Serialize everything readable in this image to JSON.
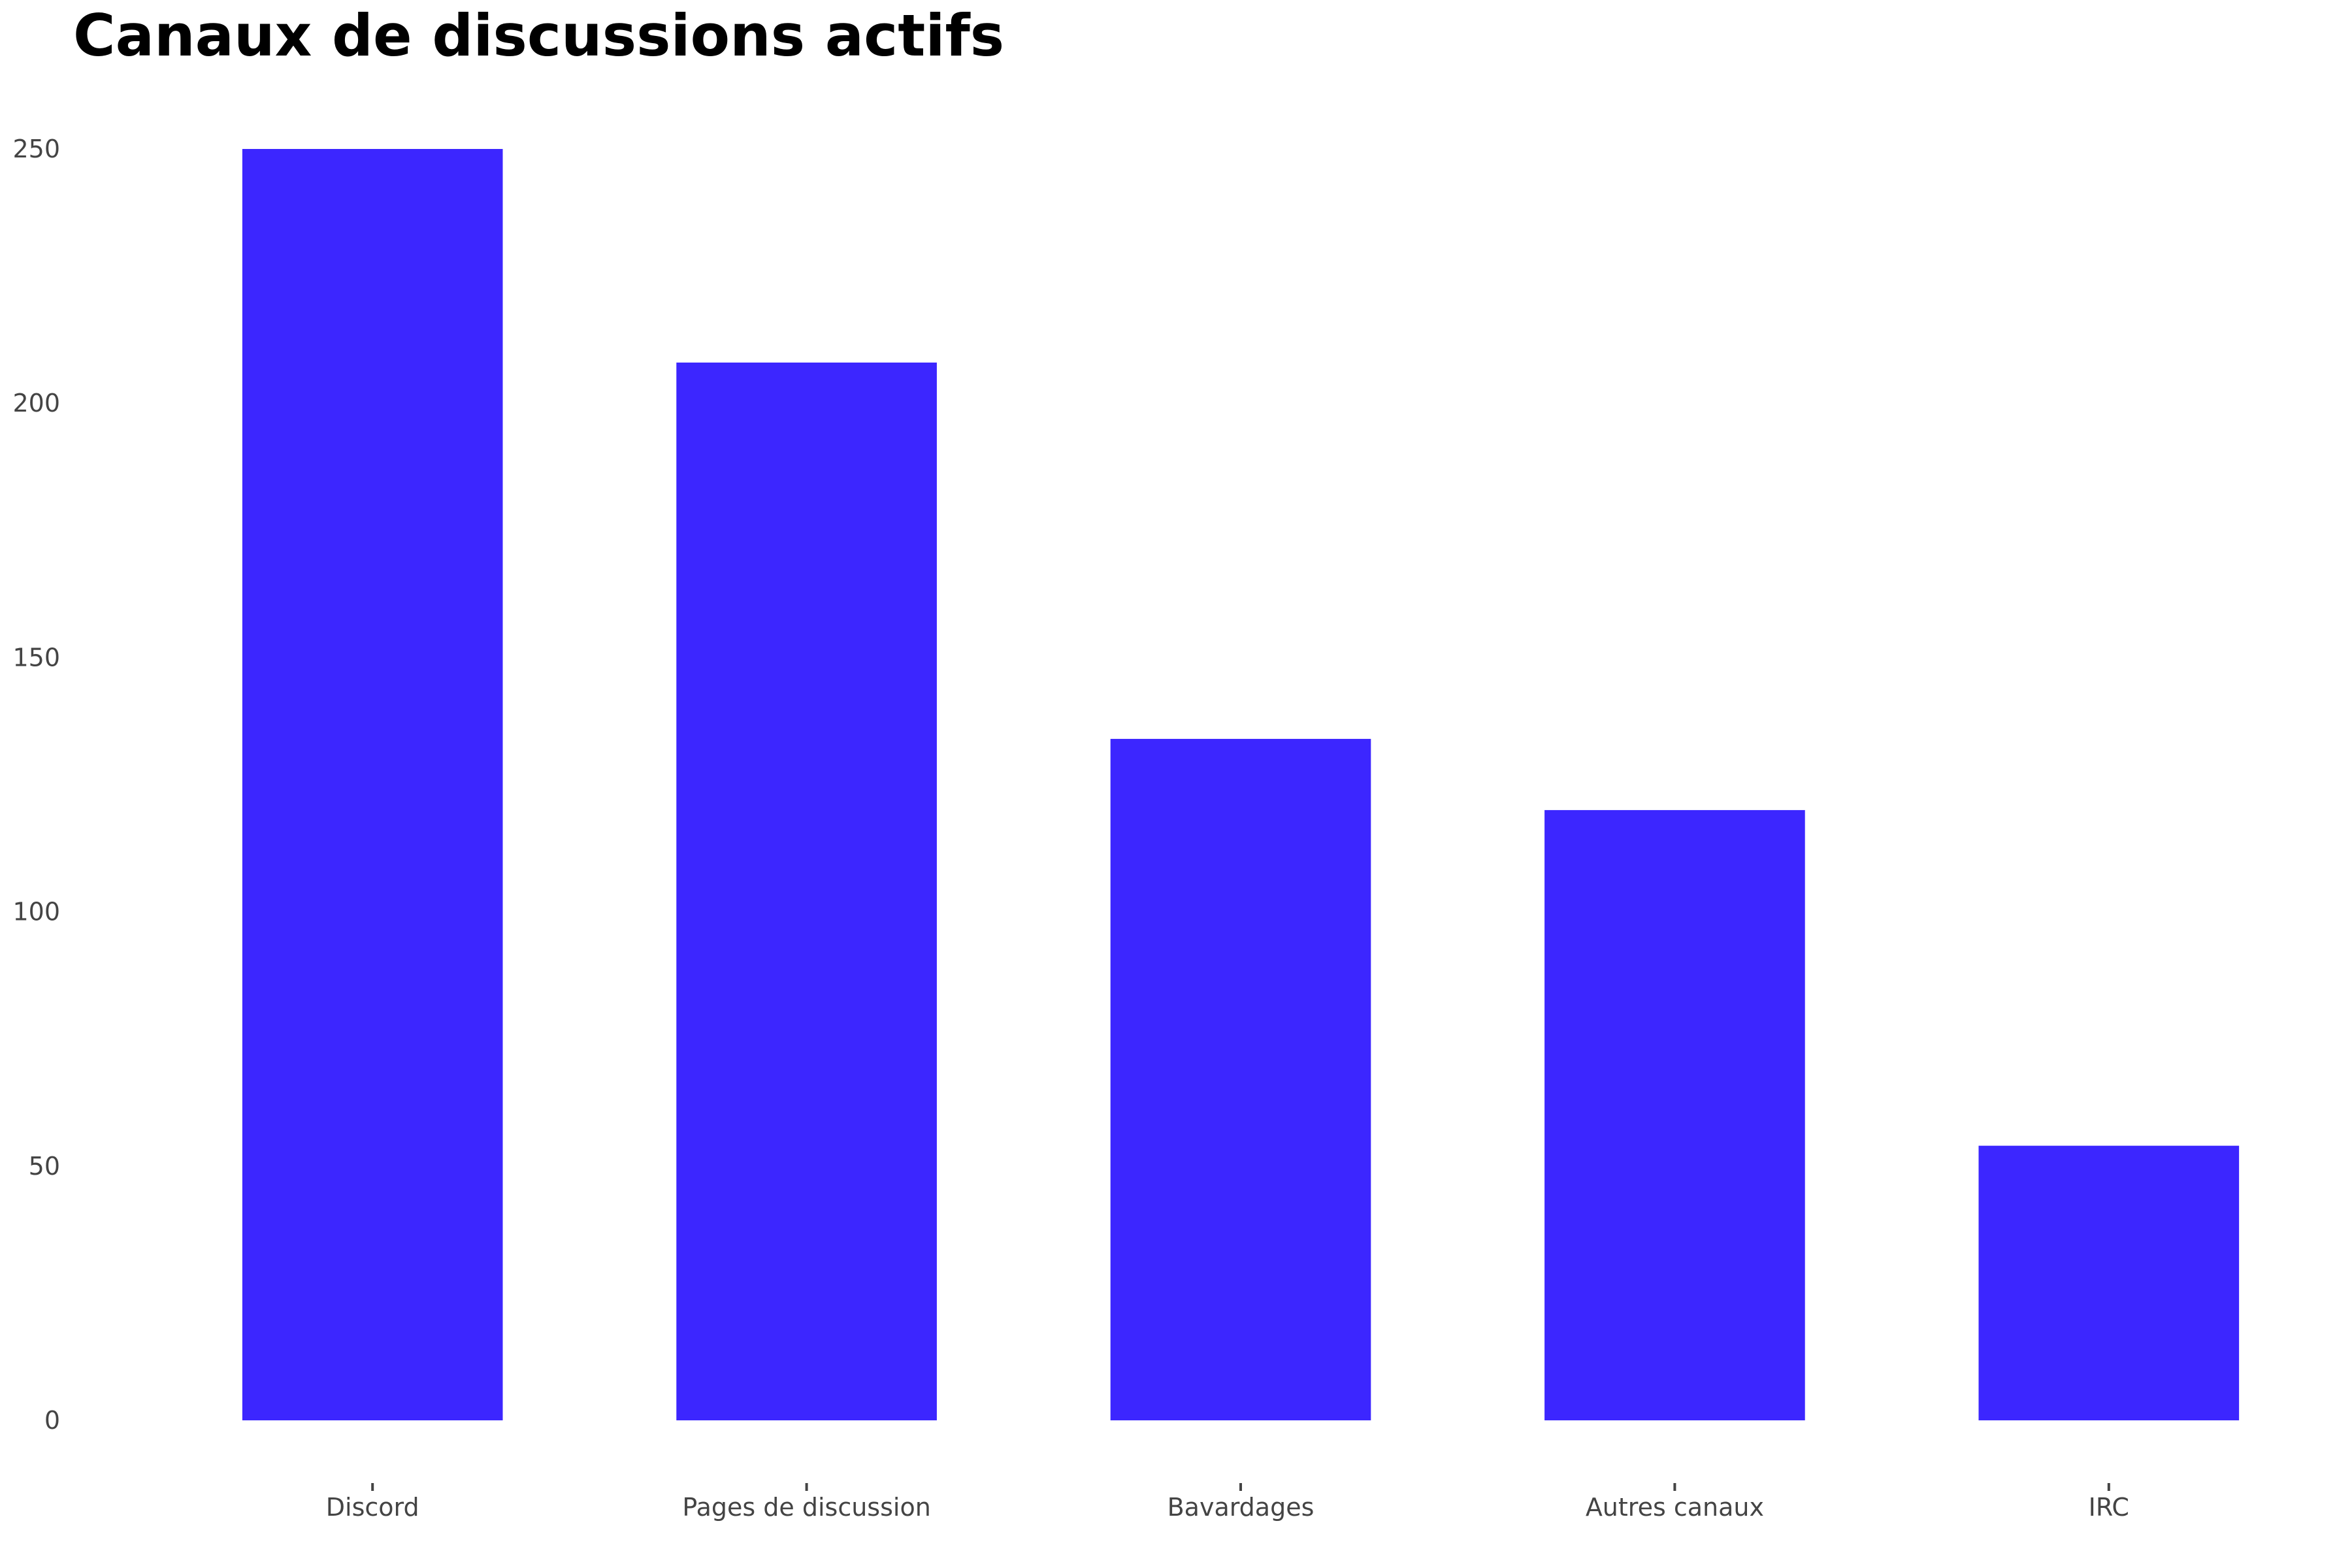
{
  "chart_data": {
    "type": "bar",
    "title": "Canaux de discussions actifs",
    "xlabel": "",
    "ylabel": "",
    "categories": [
      "Discord",
      "Pages de discussion",
      "Bavardages",
      "Autres canaux",
      "IRC"
    ],
    "values": [
      250,
      208,
      134,
      120,
      54
    ],
    "ylim": [
      0,
      250
    ],
    "yticks": [
      0,
      50,
      100,
      150,
      200,
      250
    ],
    "grid": false,
    "legend": "none",
    "bar_color": "#3c26ff"
  }
}
